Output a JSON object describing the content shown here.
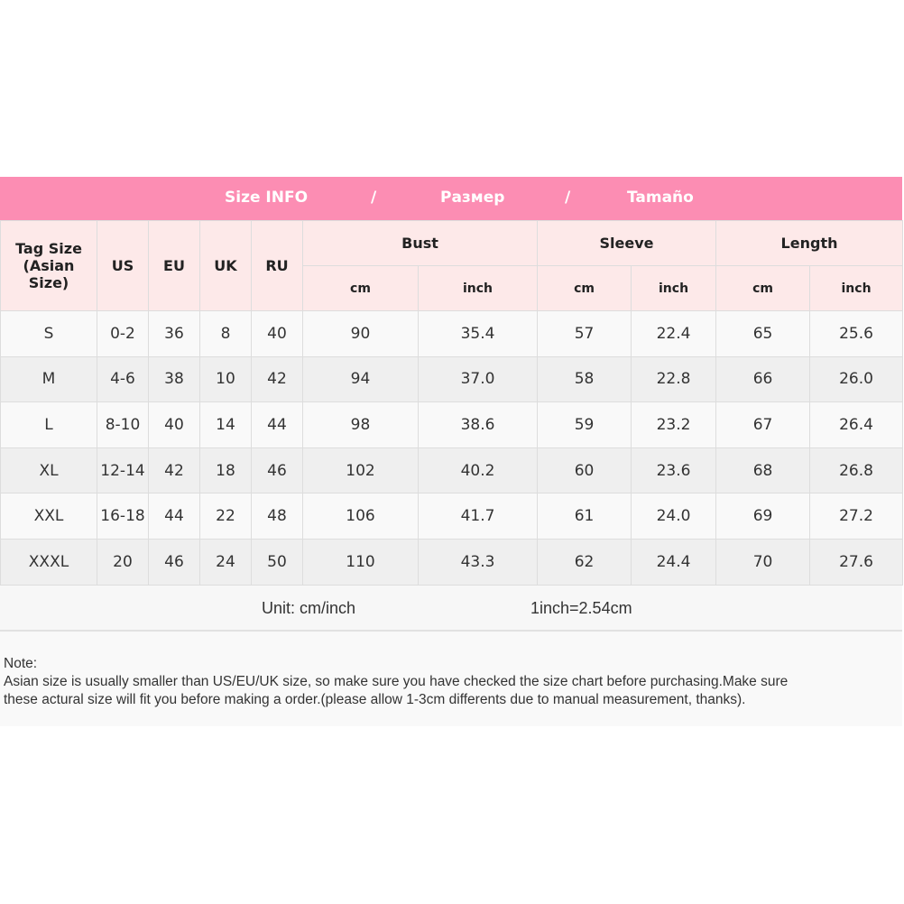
{
  "banner": {
    "en": "Size INFO",
    "sep": "/",
    "ru": "Размер",
    "es": "Tamaño"
  },
  "headers": {
    "tag_size": "Tag Size (Asian Size)",
    "us": "US",
    "eu": "EU",
    "uk": "UK",
    "ru": "RU",
    "bust": "Bust",
    "sleeve": "Sleeve",
    "length": "Length",
    "cm": "cm",
    "inch": "inch"
  },
  "rows": [
    [
      "S",
      "0-2",
      "36",
      "8",
      "40",
      "90",
      "35.4",
      "57",
      "22.4",
      "65",
      "25.6"
    ],
    [
      "M",
      "4-6",
      "38",
      "10",
      "42",
      "94",
      "37.0",
      "58",
      "22.8",
      "66",
      "26.0"
    ],
    [
      "L",
      "8-10",
      "40",
      "14",
      "44",
      "98",
      "38.6",
      "59",
      "23.2",
      "67",
      "26.4"
    ],
    [
      "XL",
      "12-14",
      "42",
      "18",
      "46",
      "102",
      "40.2",
      "60",
      "23.6",
      "68",
      "26.8"
    ],
    [
      "XXL",
      "16-18",
      "44",
      "22",
      "48",
      "106",
      "41.7",
      "61",
      "24.0",
      "69",
      "27.2"
    ],
    [
      "XXXL",
      "20",
      "46",
      "24",
      "50",
      "110",
      "43.3",
      "62",
      "24.4",
      "70",
      "27.6"
    ]
  ],
  "unit": {
    "label": "Unit: cm/inch",
    "conversion": "1inch=2.54cm"
  },
  "note": {
    "title": "Note:",
    "line1": "Asian size is usually smaller than US/EU/UK size, so make sure you have checked the size chart before purchasing.Make sure",
    "line2": "these actural size will fit you before making a order.(please allow 1-3cm differents due to manual measurement, thanks)."
  },
  "colors": {
    "banner": "#fc8db3",
    "header_bg": "#fde9e9"
  }
}
